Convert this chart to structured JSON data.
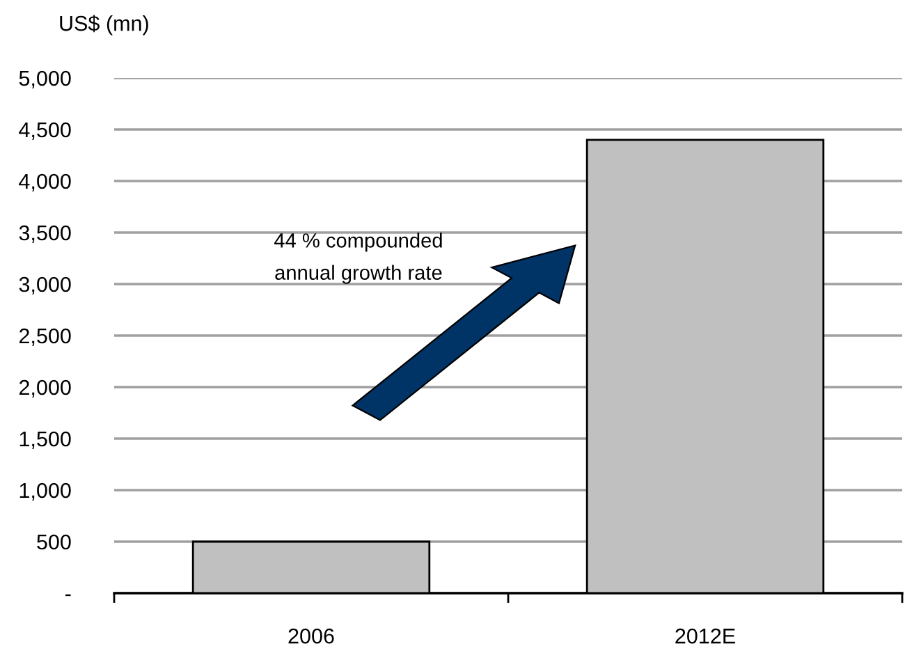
{
  "chart_data": {
    "type": "bar",
    "ylabel": "US$ (mn)",
    "categories": [
      "2006",
      "2012E"
    ],
    "values": [
      500,
      4400
    ],
    "color": "#c0c0c0",
    "ylim": [
      0,
      5000
    ],
    "yticks": [
      {
        "value": 0,
        "label": "-"
      },
      {
        "value": 500,
        "label": "500"
      },
      {
        "value": 1000,
        "label": "1,000"
      },
      {
        "value": 1500,
        "label": "1,500"
      },
      {
        "value": 2000,
        "label": "2,000"
      },
      {
        "value": 2500,
        "label": "2,500"
      },
      {
        "value": 3000,
        "label": "3,000"
      },
      {
        "value": 3500,
        "label": "3,500"
      },
      {
        "value": 4000,
        "label": "4,000"
      },
      {
        "value": 4500,
        "label": "4,500"
      },
      {
        "value": 5000,
        "label": "5,000"
      }
    ],
    "grid": "y",
    "annotations": [
      "44 % compounded\nannual growth rate"
    ]
  }
}
